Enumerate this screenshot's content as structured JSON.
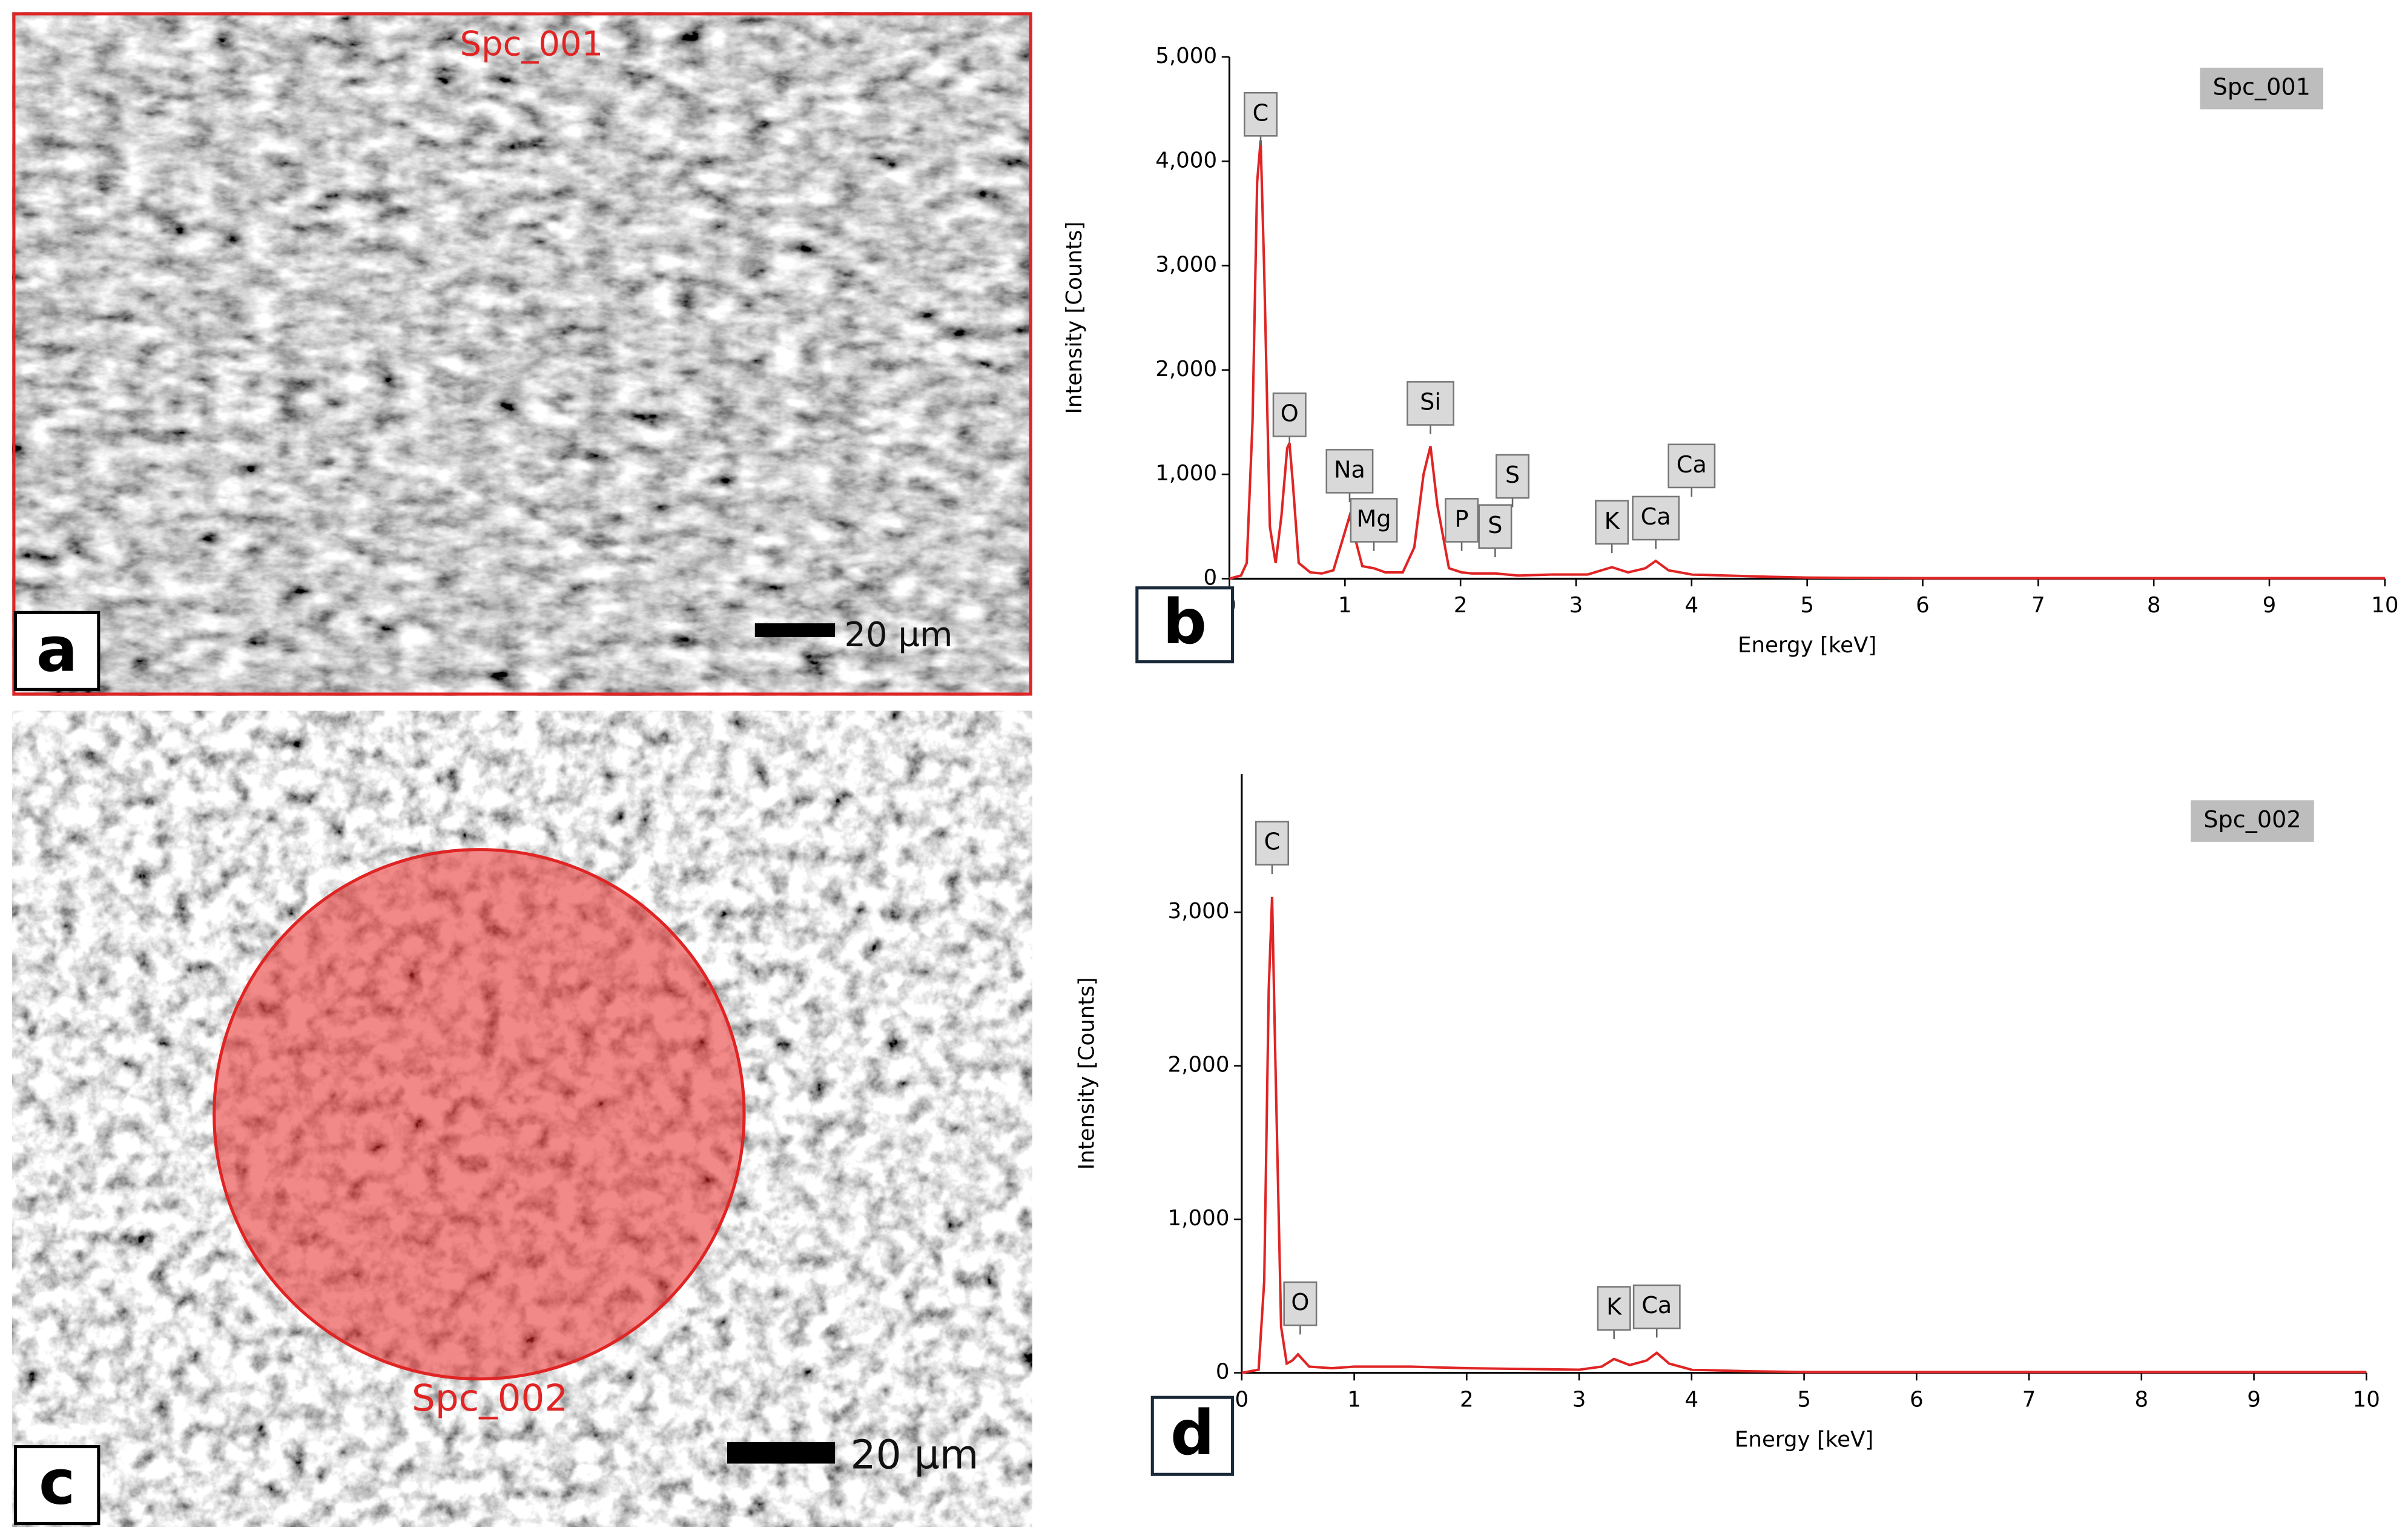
{
  "images": [
    {
      "panel": "a",
      "region": "Spc_001",
      "scale_bar": "20 µm"
    },
    {
      "panel": "c",
      "region": "Spc_002",
      "scale_bar": "20 µm"
    }
  ],
  "chart_data": [
    {
      "type": "line",
      "panel": "b",
      "xlabel": "Energy [keV]",
      "ylabel": "Intensity [Counts]",
      "xlim": [
        0,
        10
      ],
      "xticks": [
        0,
        1,
        2,
        3,
        4,
        5,
        6,
        7,
        8,
        9,
        10
      ],
      "ylim": [
        0,
        5000
      ],
      "yticks": [
        0,
        {
          "value": 1000,
          "label": "1,000"
        },
        {
          "value": 2000,
          "label": "2,000"
        },
        {
          "value": 3000,
          "label": "3,000"
        },
        {
          "value": 4000,
          "label": "4,000"
        },
        {
          "value": 5000,
          "label": "5,000"
        }
      ],
      "x": [
        0,
        0.1,
        0.15,
        0.2,
        0.24,
        0.27,
        0.3,
        0.35,
        0.4,
        0.45,
        0.5,
        0.52,
        0.55,
        0.6,
        0.7,
        0.8,
        0.9,
        1.0,
        1.04,
        1.08,
        1.15,
        1.25,
        1.35,
        1.5,
        1.6,
        1.68,
        1.74,
        1.8,
        1.9,
        2.01,
        2.1,
        2.3,
        2.5,
        2.8,
        3.1,
        3.31,
        3.45,
        3.6,
        3.69,
        3.8,
        4.0,
        4.3,
        4.6,
        5,
        6,
        7,
        8,
        9,
        10
      ],
      "series": [
        {
          "name": "Spc_001",
          "color": "#e02424",
          "values": [
            0,
            30,
            150,
            1500,
            3800,
            4200,
            3000,
            500,
            150,
            600,
            1250,
            1300,
            900,
            150,
            60,
            50,
            80,
            450,
            600,
            420,
            120,
            100,
            60,
            60,
            300,
            1000,
            1270,
            700,
            100,
            60,
            50,
            50,
            30,
            40,
            40,
            110,
            60,
            100,
            170,
            80,
            40,
            30,
            20,
            10,
            5,
            5,
            5,
            5,
            5
          ]
        }
      ],
      "annotations": [
        {
          "text": "C",
          "x": 0.27,
          "y": 4450
        },
        {
          "text": "O",
          "x": 0.52,
          "y": 1570
        },
        {
          "text": "Na",
          "x": 1.04,
          "y": 1030
        },
        {
          "text": "Mg",
          "x": 1.25,
          "y": 560
        },
        {
          "text": "Si",
          "x": 1.74,
          "y": 1680
        },
        {
          "text": "P",
          "x": 2.01,
          "y": 560
        },
        {
          "text": "S",
          "x": 2.3,
          "y": 500
        },
        {
          "text": "S",
          "x": 2.45,
          "y": 980
        },
        {
          "text": "K",
          "x": 3.31,
          "y": 540
        },
        {
          "text": "Ca",
          "x": 3.69,
          "y": 580
        },
        {
          "text": "Ca",
          "x": 4.0,
          "y": 1080
        }
      ]
    },
    {
      "type": "line",
      "panel": "d",
      "xlabel": "Energy [keV]",
      "ylabel": "Intensity [Counts]",
      "xlim": [
        0,
        10
      ],
      "xticks": [
        0,
        1,
        2,
        3,
        4,
        5,
        6,
        7,
        8,
        9,
        10
      ],
      "ylim": [
        0,
        3900
      ],
      "yticks": [
        0,
        {
          "value": 1000,
          "label": "1,000"
        },
        {
          "value": 2000,
          "label": "2,000"
        },
        {
          "value": 3000,
          "label": "3,000"
        }
      ],
      "x": [
        0,
        0.15,
        0.2,
        0.24,
        0.27,
        0.3,
        0.35,
        0.4,
        0.45,
        0.5,
        0.55,
        0.6,
        0.8,
        1.0,
        1.5,
        2.0,
        2.5,
        3.0,
        3.2,
        3.31,
        3.45,
        3.6,
        3.69,
        3.8,
        4.0,
        4.5,
        5,
        6,
        7,
        8,
        9,
        10
      ],
      "series": [
        {
          "name": "Spc_002",
          "color": "#e02424",
          "values": [
            0,
            20,
            600,
            2500,
            3100,
            2000,
            300,
            60,
            80,
            120,
            80,
            40,
            30,
            40,
            40,
            30,
            25,
            20,
            40,
            90,
            50,
            80,
            130,
            60,
            20,
            10,
            5,
            5,
            5,
            5,
            5,
            5
          ]
        }
      ],
      "annotations": [
        {
          "text": "C",
          "x": 0.27,
          "y": 3450
        },
        {
          "text": "O",
          "x": 0.52,
          "y": 450
        },
        {
          "text": "K",
          "x": 3.31,
          "y": 420
        },
        {
          "text": "Ca",
          "x": 3.69,
          "y": 430
        }
      ]
    }
  ]
}
